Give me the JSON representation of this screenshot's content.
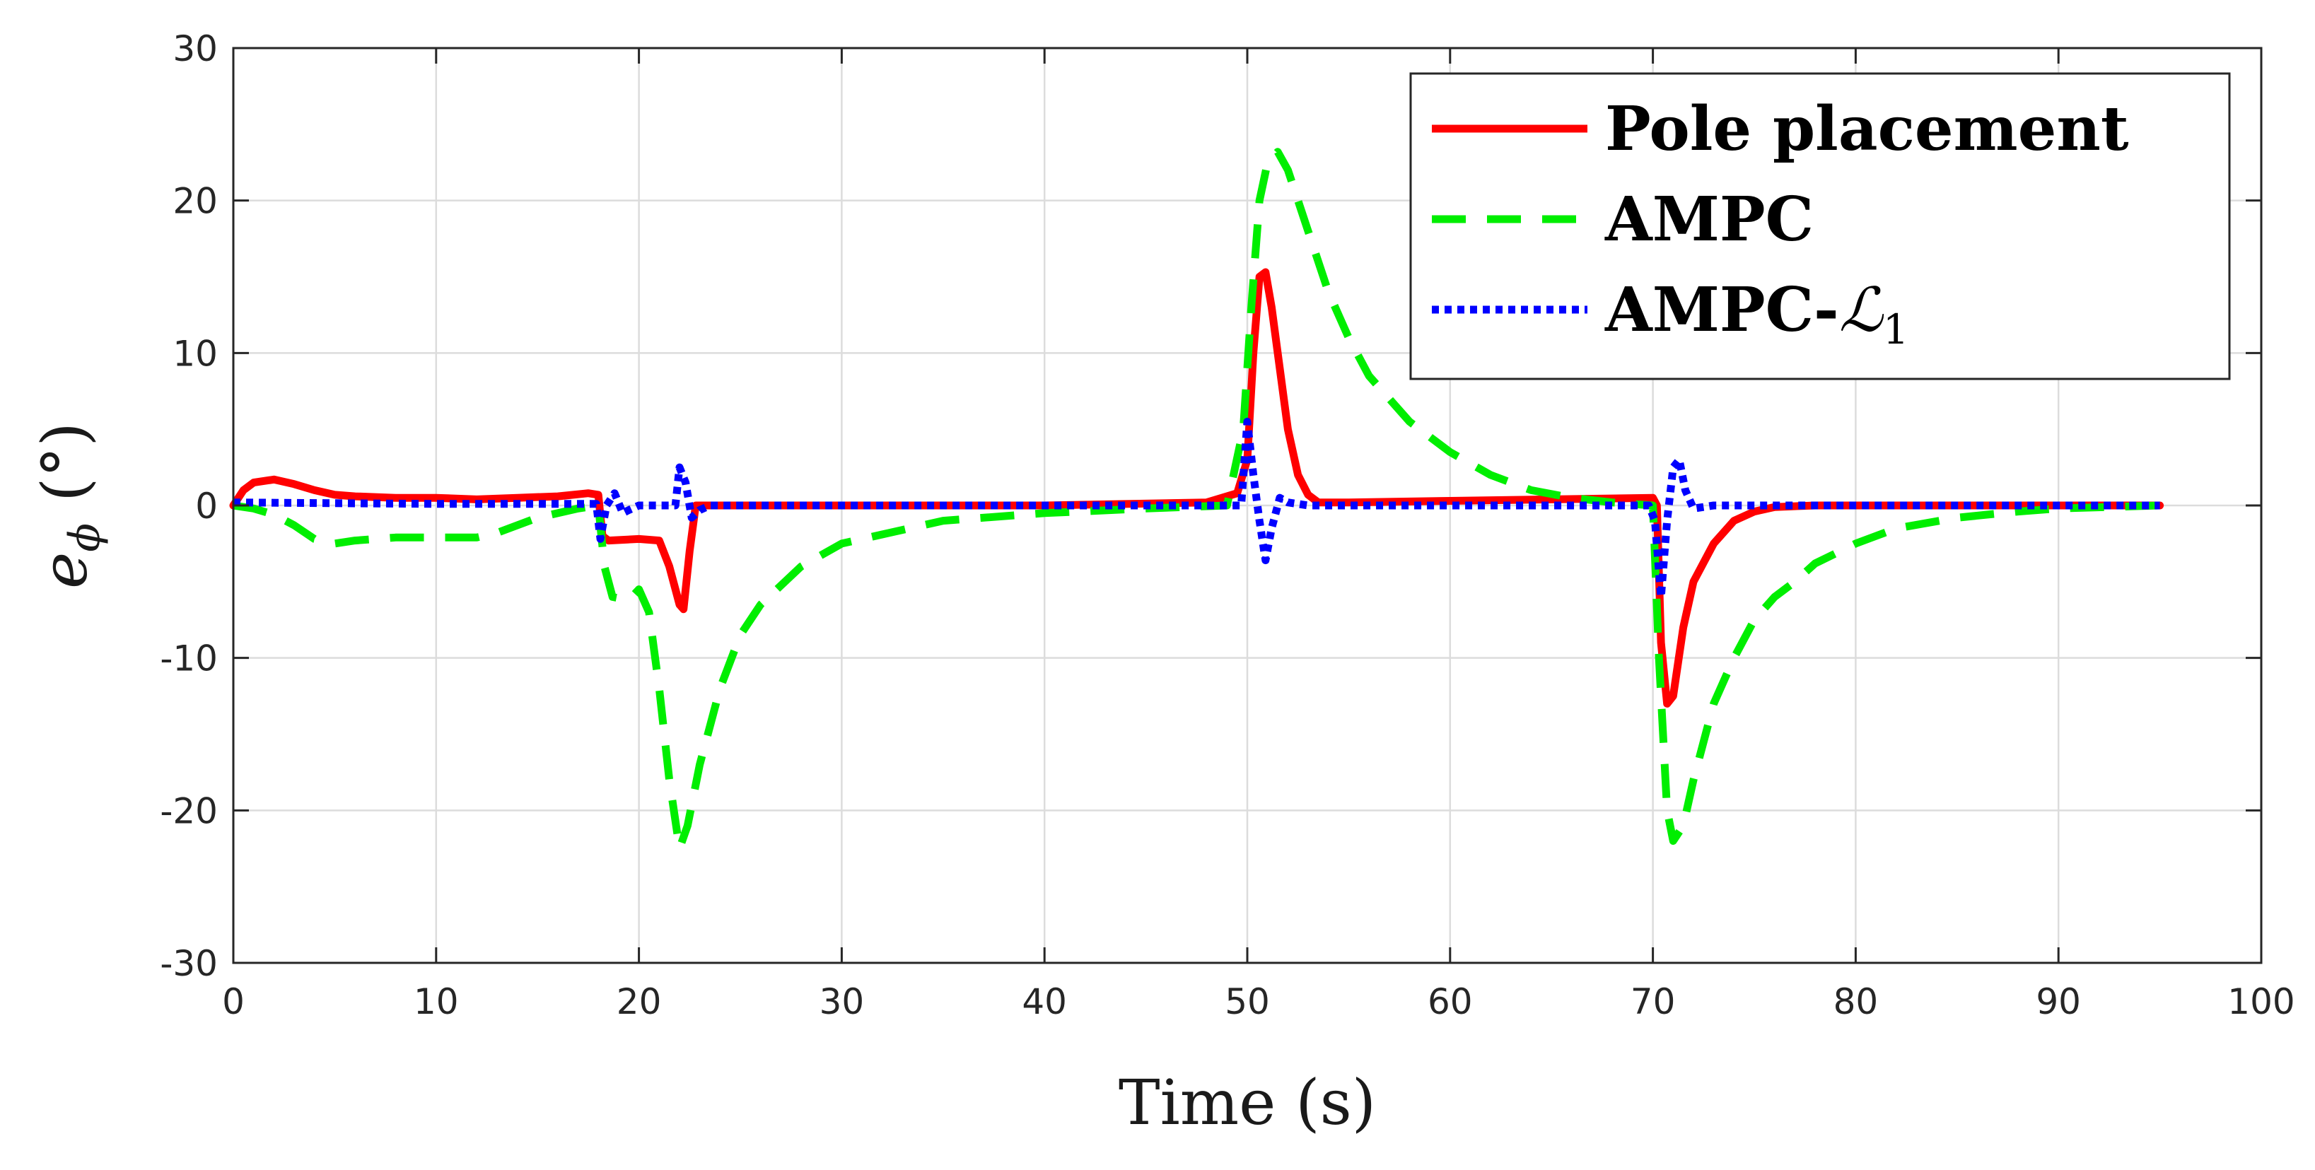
{
  "chart_data": {
    "type": "line",
    "title": "",
    "xlabel": "Time (s)",
    "ylabel": "e",
    "ylabel_subscript": "ϕ",
    "ylabel_unit": "(°)",
    "xlim": [
      0,
      100
    ],
    "ylim": [
      -30,
      30
    ],
    "grid": true,
    "legend_position": "top-right",
    "xticks": [
      0,
      10,
      20,
      30,
      40,
      50,
      60,
      70,
      80,
      90,
      100
    ],
    "yticks": [
      -30,
      -20,
      -10,
      0,
      10,
      20,
      30
    ],
    "xtick_labels": [
      "0",
      "10",
      "20",
      "30",
      "40",
      "50",
      "60",
      "70",
      "80",
      "90",
      "100"
    ],
    "ytick_labels": [
      "-30",
      "-20",
      "-10",
      "0",
      "10",
      "20",
      "30"
    ],
    "series": [
      {
        "name": "Pole placement",
        "label_main": "Pole placement",
        "label_sub": "",
        "color": "#ff0000",
        "style": "solid",
        "points": [
          [
            0,
            0
          ],
          [
            0.5,
            1.0
          ],
          [
            1,
            1.5
          ],
          [
            2,
            1.7
          ],
          [
            3,
            1.4
          ],
          [
            4,
            1.0
          ],
          [
            5,
            0.7
          ],
          [
            6,
            0.6
          ],
          [
            8,
            0.5
          ],
          [
            10,
            0.5
          ],
          [
            12,
            0.4
          ],
          [
            14,
            0.5
          ],
          [
            16,
            0.6
          ],
          [
            17.5,
            0.8
          ],
          [
            18,
            0.7
          ],
          [
            18.2,
            -2.0
          ],
          [
            18.5,
            -2.3
          ],
          [
            20,
            -2.2
          ],
          [
            21,
            -2.3
          ],
          [
            21.5,
            -4
          ],
          [
            22,
            -6.5
          ],
          [
            22.2,
            -6.8
          ],
          [
            22.5,
            -3
          ],
          [
            22.8,
            0
          ],
          [
            24,
            0
          ],
          [
            30,
            0
          ],
          [
            40,
            0
          ],
          [
            48,
            0.2
          ],
          [
            49.5,
            0.8
          ],
          [
            50,
            3
          ],
          [
            50.3,
            10
          ],
          [
            50.6,
            15
          ],
          [
            50.9,
            15.3
          ],
          [
            51.2,
            13
          ],
          [
            51.6,
            9
          ],
          [
            52,
            5
          ],
          [
            52.5,
            2
          ],
          [
            53,
            0.7
          ],
          [
            53.5,
            0.2
          ],
          [
            55,
            0.2
          ],
          [
            60,
            0.3
          ],
          [
            65,
            0.4
          ],
          [
            70,
            0.5
          ],
          [
            70.2,
            0
          ],
          [
            70.4,
            -9
          ],
          [
            70.7,
            -13
          ],
          [
            71,
            -12.5
          ],
          [
            71.5,
            -8
          ],
          [
            72,
            -5
          ],
          [
            73,
            -2.5
          ],
          [
            74,
            -1
          ],
          [
            75,
            -0.4
          ],
          [
            76,
            -0.1
          ],
          [
            78,
            0
          ],
          [
            85,
            0
          ],
          [
            95,
            0
          ]
        ]
      },
      {
        "name": "AMPC",
        "label_main": "AMPC",
        "label_sub": "",
        "color": "#00ee00",
        "style": "dashed",
        "points": [
          [
            0,
            0
          ],
          [
            1,
            -0.2
          ],
          [
            2,
            -0.6
          ],
          [
            3,
            -1.3
          ],
          [
            4,
            -2.2
          ],
          [
            5,
            -2.5
          ],
          [
            6,
            -2.3
          ],
          [
            8,
            -2.1
          ],
          [
            10,
            -2.1
          ],
          [
            12,
            -2.1
          ],
          [
            13,
            -1.8
          ],
          [
            15,
            -0.8
          ],
          [
            17,
            -0.2
          ],
          [
            18,
            0
          ],
          [
            18.3,
            -4
          ],
          [
            18.7,
            -6
          ],
          [
            19.5,
            -6.2
          ],
          [
            20,
            -5.5
          ],
          [
            20.5,
            -7
          ],
          [
            21,
            -12
          ],
          [
            21.5,
            -18
          ],
          [
            22,
            -22.5
          ],
          [
            22.4,
            -21
          ],
          [
            23,
            -17
          ],
          [
            24,
            -12
          ],
          [
            25,
            -8.5
          ],
          [
            26,
            -6.5
          ],
          [
            28,
            -4
          ],
          [
            30,
            -2.5
          ],
          [
            35,
            -1
          ],
          [
            40,
            -0.5
          ],
          [
            45,
            -0.2
          ],
          [
            49,
            0
          ],
          [
            49.8,
            5
          ],
          [
            50.2,
            13
          ],
          [
            50.6,
            20
          ],
          [
            51,
            22.5
          ],
          [
            51.5,
            23.2
          ],
          [
            52,
            22
          ],
          [
            53,
            18
          ],
          [
            54,
            14
          ],
          [
            55,
            11
          ],
          [
            56,
            8.5
          ],
          [
            58,
            5.5
          ],
          [
            60,
            3.5
          ],
          [
            62,
            2
          ],
          [
            64,
            1
          ],
          [
            66,
            0.5
          ],
          [
            68,
            0.2
          ],
          [
            70,
            0
          ],
          [
            70.3,
            -10
          ],
          [
            70.7,
            -20
          ],
          [
            71,
            -22
          ],
          [
            71.5,
            -21
          ],
          [
            72,
            -18
          ],
          [
            73,
            -13
          ],
          [
            74,
            -10
          ],
          [
            75,
            -7.5
          ],
          [
            76,
            -6
          ],
          [
            77,
            -5
          ],
          [
            78,
            -3.8
          ],
          [
            80,
            -2.5
          ],
          [
            82,
            -1.5
          ],
          [
            85,
            -0.8
          ],
          [
            88,
            -0.4
          ],
          [
            90,
            -0.2
          ],
          [
            95,
            0
          ]
        ]
      },
      {
        "name": "AMPC-ℒ1",
        "label_main": "AMPC-",
        "label_sub": "ℒ",
        "label_subscript": "1",
        "color": "#0000ff",
        "style": "dotted",
        "points": [
          [
            0,
            0.2
          ],
          [
            5,
            0.15
          ],
          [
            10,
            0.1
          ],
          [
            17.9,
            0.1
          ],
          [
            18.1,
            -2.2
          ],
          [
            18.4,
            0
          ],
          [
            18.8,
            0.8
          ],
          [
            19.2,
            -0.5
          ],
          [
            19.5,
            -0.3
          ],
          [
            20,
            0
          ],
          [
            21.8,
            0
          ],
          [
            22,
            2.5
          ],
          [
            22.3,
            1.5
          ],
          [
            22.6,
            -0.8
          ],
          [
            23,
            -0.3
          ],
          [
            23.5,
            0
          ],
          [
            30,
            0
          ],
          [
            40,
            0
          ],
          [
            49.7,
            0
          ],
          [
            50,
            5.5
          ],
          [
            50.3,
            2
          ],
          [
            50.6,
            -1
          ],
          [
            50.9,
            -3.6
          ],
          [
            51.2,
            -1.5
          ],
          [
            51.6,
            0.5
          ],
          [
            52,
            0.2
          ],
          [
            53,
            0
          ],
          [
            60,
            0
          ],
          [
            69.8,
            0
          ],
          [
            70.1,
            -1
          ],
          [
            70.4,
            -6
          ],
          [
            70.7,
            -1
          ],
          [
            71,
            2.5
          ],
          [
            71.3,
            3
          ],
          [
            71.6,
            1
          ],
          [
            72,
            -0.2
          ],
          [
            73,
            0
          ],
          [
            80,
            0
          ],
          [
            95,
            0
          ]
        ]
      }
    ]
  }
}
